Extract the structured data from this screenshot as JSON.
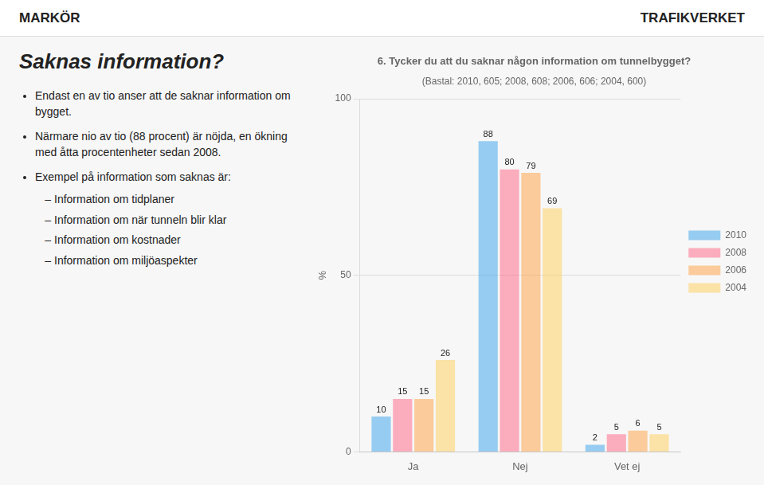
{
  "chart_data": {
    "type": "bar",
    "title": "6. Tycker du att du saknar någon information om tunnelbygget?",
    "subtitle": "(Bastal: 2010, 605; 2008, 608; 2006, 606; 2004, 600)",
    "categories": [
      "Ja",
      "Nej",
      "Vet ej"
    ],
    "series": [
      {
        "name": "2010",
        "values": [
          10,
          88,
          2
        ]
      },
      {
        "name": "2008",
        "values": [
          15,
          80,
          5
        ]
      },
      {
        "name": "2006",
        "values": [
          15,
          79,
          6
        ]
      },
      {
        "name": "2004",
        "values": [
          26,
          69,
          5
        ]
      }
    ],
    "ylabel": "%",
    "ylim": [
      0,
      100
    ],
    "yticks": [
      0,
      50,
      100
    ],
    "grid": true,
    "legend": "right",
    "data_labels": true,
    "annotations": [
      "MARKÖR",
      "TRAFIKVERKET",
      "Saknas information?",
      "Endast en av tio anser att de saknar information om bygget.",
      "Närmare nio av tio (88 procent) är nöjda, en ökning med åtta procentenheter sedan 2008.",
      "Exempel på information som saknas är:",
      "Information om tidplaner",
      "Information om när tunneln blir klar",
      "Information om kostnader",
      "Information om miljöaspekter"
    ]
  }
}
